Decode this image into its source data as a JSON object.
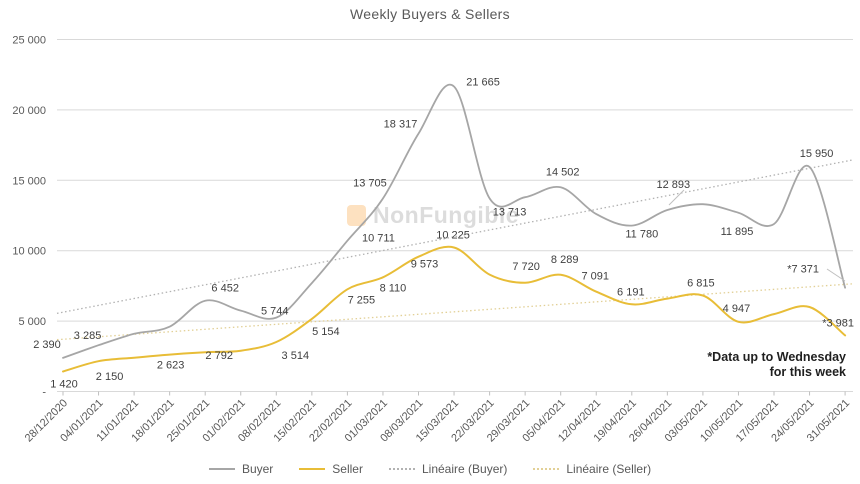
{
  "title": "Weekly Buyers & Sellers",
  "watermark": {
    "text": "NonFungible",
    "icon": "nonfungible-logo"
  },
  "annotation": {
    "line1": "*Data up to Wednesday",
    "line2": "for this week"
  },
  "legend": [
    {
      "label": "Buyer",
      "style": "solid",
      "color": "#a6a6a6"
    },
    {
      "label": "Seller",
      "style": "solid",
      "color": "#e8bd37"
    },
    {
      "label": "Linéaire (Buyer)",
      "style": "dotted",
      "color": "#b2b2b2"
    },
    {
      "label": "Linéaire (Seller)",
      "style": "dotted",
      "color": "#e2d096"
    }
  ],
  "chart_data": {
    "type": "line",
    "smooth": true,
    "grid": true,
    "legend_position": "bottom",
    "ylim": [
      0,
      25000
    ],
    "y_ticks": [
      {
        "label": "25 000",
        "value": 25000
      },
      {
        "label": "20 000",
        "value": 20000
      },
      {
        "label": "15 000",
        "value": 15000
      },
      {
        "label": "10 000",
        "value": 10000
      },
      {
        "label": "5 000",
        "value": 5000
      },
      {
        "label": "-",
        "value": 0
      }
    ],
    "categories": [
      "28/12/2020",
      "04/01/2021",
      "11/01/2021",
      "18/01/2021",
      "25/01/2021",
      "01/02/2021",
      "08/02/2021",
      "15/02/2021",
      "22/02/2021",
      "01/03/2021",
      "08/03/2021",
      "15/03/2021",
      "22/03/2021",
      "29/03/2021",
      "05/04/2021",
      "12/04/2021",
      "19/04/2021",
      "26/04/2021",
      "03/05/2021",
      "10/05/2021",
      "17/05/2021",
      "24/05/2021",
      "31/05/2021"
    ],
    "series": [
      {
        "name": "Buyer",
        "color": "#a6a6a6",
        "values": [
          2390,
          3285,
          4100,
          4600,
          6452,
          5744,
          5250,
          7700,
          10711,
          13705,
          18317,
          21665,
          13713,
          13800,
          14502,
          12600,
          11780,
          12893,
          13300,
          12700,
          11895,
          15950,
          7371
        ],
        "labels": [
          "2 390",
          "3 285",
          null,
          null,
          "6 452",
          "5 744",
          null,
          null,
          "10 711",
          "13 705",
          "18 317",
          "21 665",
          "13 713",
          null,
          "14 502",
          null,
          "11 780",
          "12 893",
          null,
          null,
          "11 895",
          "15 950",
          "*7 371"
        ]
      },
      {
        "name": "Seller",
        "color": "#e8bd37",
        "values": [
          1420,
          2150,
          2400,
          2623,
          2792,
          2900,
          3514,
          5154,
          7255,
          8110,
          9573,
          10225,
          8300,
          7720,
          8289,
          7091,
          6191,
          6600,
          6815,
          4947,
          5500,
          6000,
          3981
        ],
        "labels": [
          "1 420",
          "2 150",
          null,
          "2 623",
          "2 792",
          null,
          "3 514",
          "5 154",
          "7 255",
          "8 110",
          "9 573",
          "10 225",
          null,
          "7 720",
          "8 289",
          "7 091",
          "6 191",
          null,
          "6 815",
          "4 947",
          null,
          null,
          "*3 981"
        ]
      }
    ],
    "trendlines": [
      {
        "name": "Linéaire (Buyer)",
        "color": "#b2b2b2",
        "start_value": 5550,
        "end_value": 16450
      },
      {
        "name": "Linéaire (Seller)",
        "color": "#e2d096",
        "start_value": 3680,
        "end_value": 7650
      }
    ]
  }
}
